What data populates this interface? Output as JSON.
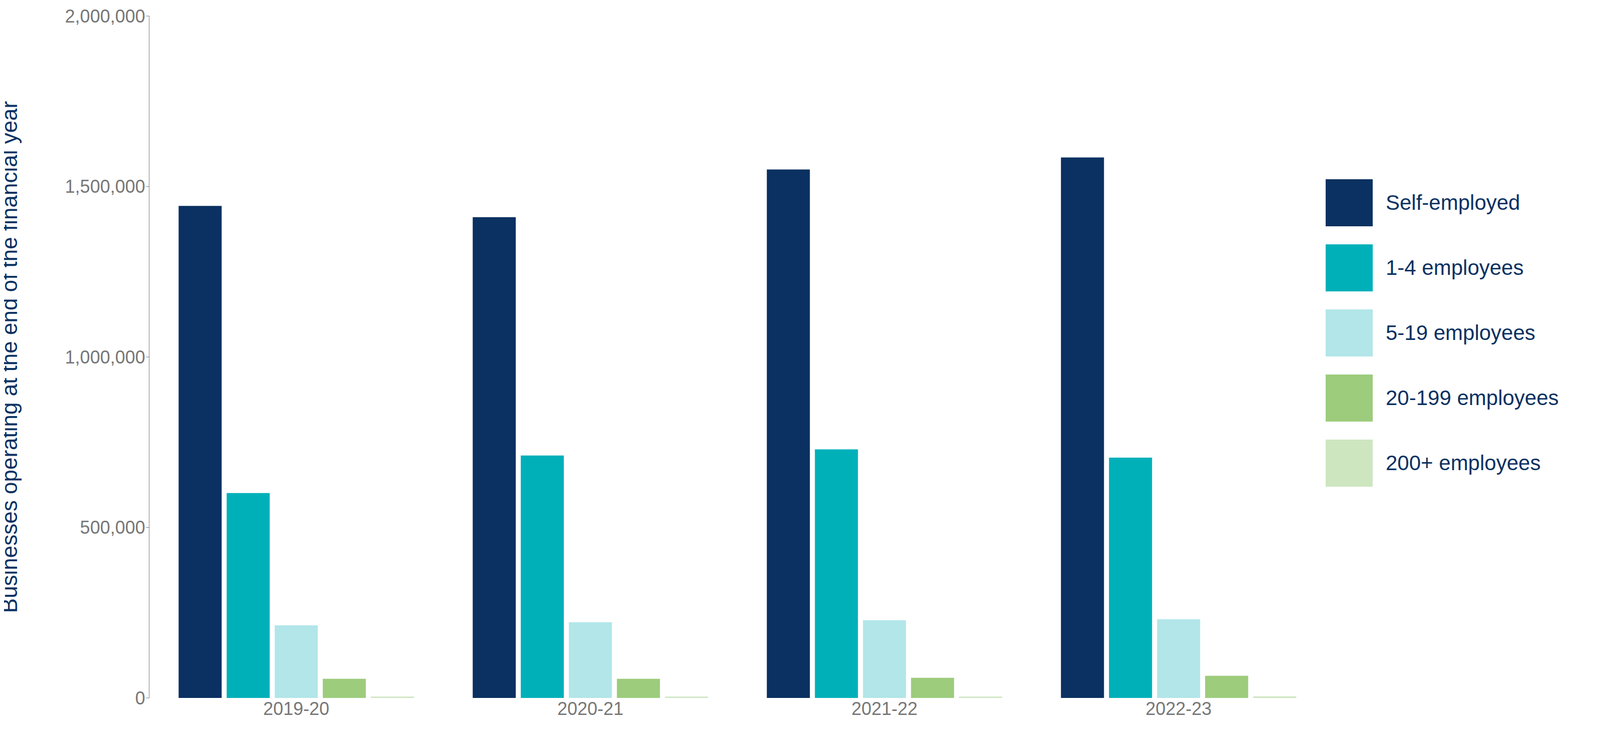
{
  "chart_data": {
    "type": "bar",
    "y_label": "Businesses operating at the end of the financial year",
    "categories": [
      "2019-20",
      "2020-21",
      "2021-22",
      "2022-23"
    ],
    "series": [
      {
        "name": "Self-employed",
        "color": "#0a3161",
        "values": [
          1443000,
          1410000,
          1550000,
          1585000
        ]
      },
      {
        "name": "1-4 employees",
        "color": "#00b0b9",
        "values": [
          601000,
          711000,
          729000,
          705000
        ]
      },
      {
        "name": "5-19 employees",
        "color": "#b2e6e9",
        "values": [
          213000,
          222000,
          228000,
          231000
        ]
      },
      {
        "name": "20-199 employees",
        "color": "#9ccc7c",
        "values": [
          56000,
          56000,
          59000,
          65000
        ]
      },
      {
        "name": "200+ employees",
        "color": "#cde6c0",
        "values": [
          4000,
          4000,
          4200,
          4500
        ]
      }
    ],
    "ylim": [
      0,
      2000000
    ],
    "yticks": [
      0,
      {
        "value": 500000,
        "label": "500,000"
      },
      {
        "value": 1000000,
        "label": "1,000,000"
      },
      {
        "value": 1500000,
        "label": "1,500,000"
      },
      {
        "value": 2000000,
        "label": "2,000,000"
      }
    ],
    "legend": "right",
    "grid": false
  }
}
